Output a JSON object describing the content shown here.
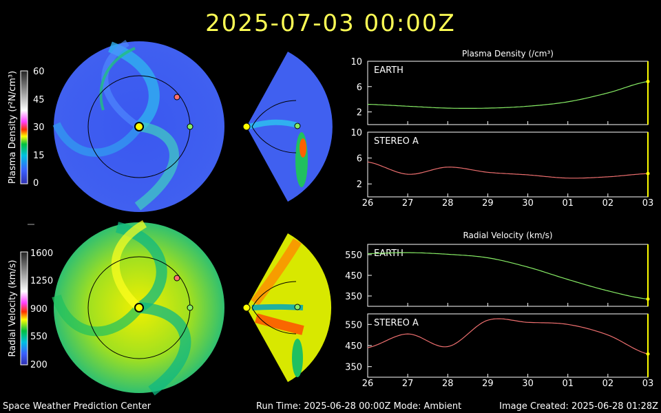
{
  "header": {
    "timestamp": "2025-07-03  00:00Z"
  },
  "footer": {
    "left": "Space Weather Prediction Center",
    "middle": "Run Time: 2025-06-28 00:00Z  Mode: Ambient",
    "right": "Image Created: 2025-06-28 01:28Z"
  },
  "colorbars": [
    {
      "label": "Plasma Density (r²N/cm³)",
      "ticks": [
        "60",
        "45",
        "30",
        "15",
        "0"
      ]
    },
    {
      "label": "Radial Velocity (km/s)",
      "ticks": [
        "1600",
        "1250",
        "900",
        "550",
        "200"
      ]
    }
  ],
  "colors": {
    "earth_line": "#88ee66",
    "stereo_line": "#f07070",
    "marker": "#ffff00",
    "frame": "#ffffff"
  },
  "chart_data": [
    {
      "type": "line",
      "title": "Plasma Density (/cm³)",
      "x": [
        "26",
        "27",
        "28",
        "29",
        "30",
        "01",
        "02",
        "03"
      ],
      "panels": [
        {
          "name": "EARTH",
          "ylim": [
            0,
            10
          ],
          "yticks": [
            "10",
            "6",
            "2"
          ],
          "values": [
            3.2,
            2.9,
            2.6,
            2.6,
            2.9,
            3.6,
            5.0,
            6.8
          ]
        },
        {
          "name": "STEREO A",
          "ylim": [
            0,
            10
          ],
          "yticks": [
            "10",
            "6",
            "2"
          ],
          "values": [
            5.4,
            3.5,
            4.6,
            3.8,
            3.4,
            2.9,
            3.1,
            3.6
          ]
        }
      ]
    },
    {
      "type": "line",
      "title": "Radial Velocity (km/s)",
      "x": [
        "26",
        "27",
        "28",
        "29",
        "30",
        "01",
        "02",
        "03"
      ],
      "panels": [
        {
          "name": "EARTH",
          "ylim": [
            300,
            600
          ],
          "yticks": [
            "550",
            "450",
            "350"
          ],
          "values": [
            555,
            560,
            552,
            535,
            490,
            430,
            375,
            335
          ]
        },
        {
          "name": "STEREO A",
          "ylim": [
            300,
            600
          ],
          "yticks": [
            "550",
            "450",
            "350"
          ],
          "values": [
            440,
            505,
            445,
            570,
            560,
            550,
            500,
            410
          ]
        }
      ]
    }
  ]
}
